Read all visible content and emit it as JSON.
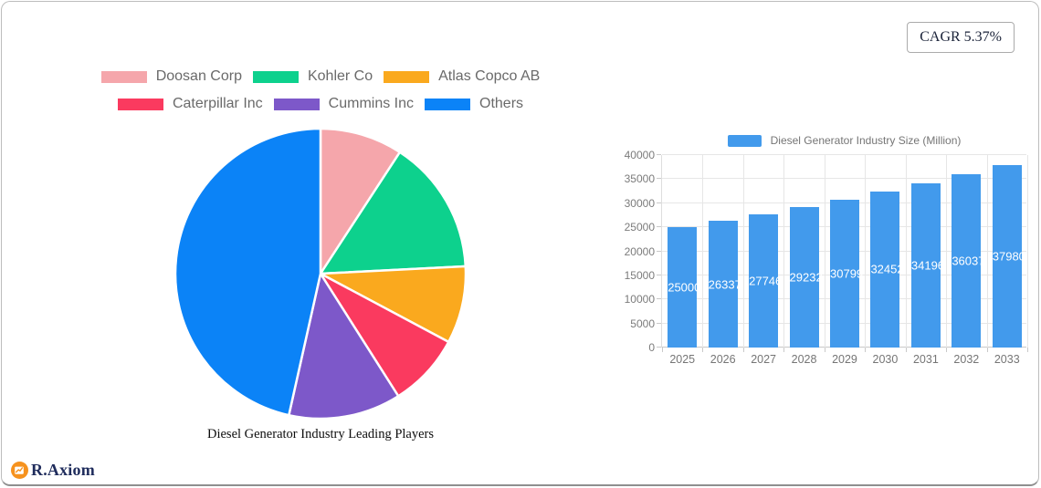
{
  "badges": {
    "cagr": "CAGR 5.37%"
  },
  "brand": {
    "name": "R.Axiom",
    "icon_color": "#f6921e",
    "text_color": "#1f2c5c"
  },
  "chart_data": [
    {
      "type": "pie",
      "title": "Diesel Generator Industry Leading Players",
      "labels": [
        "Doosan Corp",
        "Kohler Co",
        "Atlas Copco AB",
        "Caterpillar Inc",
        "Cummins Inc",
        "Others"
      ],
      "values_pct": [
        9.2,
        15.0,
        8.6,
        8.2,
        12.5,
        46.5
      ],
      "colors": [
        "#F5A6AB",
        "#0DD18D",
        "#FAA91E",
        "#FA3A5F",
        "#7D58C9",
        "#0B83F7"
      ],
      "start_angle_deg": -90,
      "direction": "clockwise",
      "slice_border_color": "#ffffff",
      "legend_position": "top",
      "legend_rows": 2
    },
    {
      "type": "bar",
      "categories": [
        "2025",
        "2026",
        "2027",
        "2028",
        "2029",
        "2030",
        "2031",
        "2032",
        "2033"
      ],
      "series": [
        {
          "name": "Diesel Generator Industry Size (Million)",
          "values": [
            25000,
            26337,
            27746,
            29232,
            30799,
            32452,
            34196,
            36037,
            37980
          ]
        }
      ],
      "bar_color": "#429AEC",
      "value_label_color": "#ffffff",
      "ylim": [
        0,
        40000
      ],
      "ytick_step": 5000,
      "grid": true,
      "legend_position": "top"
    }
  ]
}
